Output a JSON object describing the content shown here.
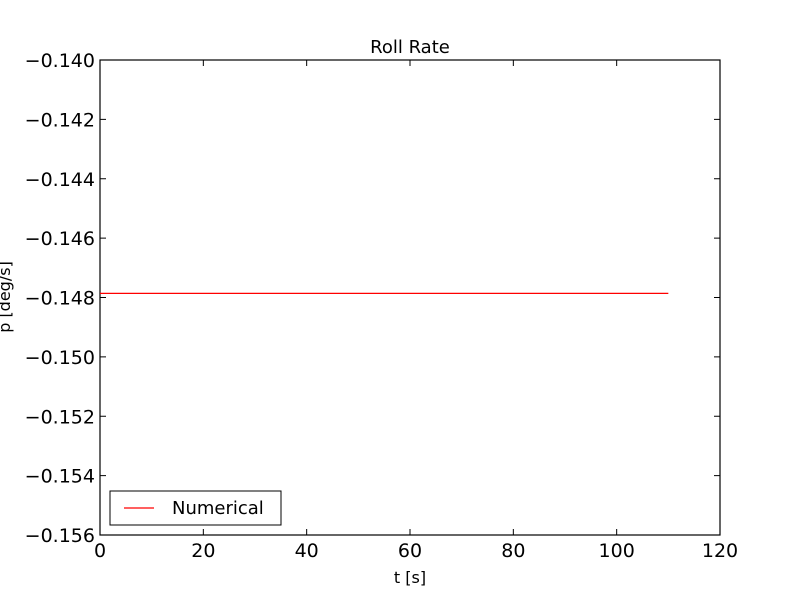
{
  "chart_data": {
    "type": "line",
    "title": "Roll Rate",
    "xlabel": "t [s]",
    "ylabel": "p [deg/s]",
    "xlim": [
      0,
      120
    ],
    "ylim": [
      -0.156,
      -0.14
    ],
    "x_ticks": [
      0,
      20,
      40,
      60,
      80,
      100,
      120
    ],
    "x_tick_labels": [
      "0",
      "20",
      "40",
      "60",
      "80",
      "100",
      "120"
    ],
    "y_ticks": [
      -0.14,
      -0.142,
      -0.144,
      -0.146,
      -0.148,
      -0.15,
      -0.152,
      -0.154,
      -0.156
    ],
    "y_tick_labels": [
      "−0.140",
      "−0.142",
      "−0.144",
      "−0.146",
      "−0.148",
      "−0.150",
      "−0.152",
      "−0.154",
      "−0.156"
    ],
    "grid": false,
    "legend_position": "lower-left",
    "series": [
      {
        "name": "Numerical",
        "color": "#ff0000",
        "x": [
          0,
          110
        ],
        "y": [
          -0.14786,
          -0.14786
        ]
      }
    ]
  }
}
